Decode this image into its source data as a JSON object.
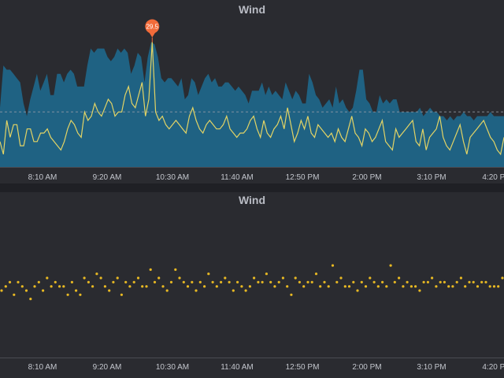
{
  "colors": {
    "background": "#2a2b30",
    "area_fill": "#1f6283",
    "line": "#e3d465",
    "dots": "#e8b923",
    "reference_line": "#9aa0aa",
    "marker": "#f26b3a",
    "text": "#c3c6cd"
  },
  "chart_data": [
    {
      "type": "area",
      "title": "Wind",
      "x_ticks": [
        "8:10 AM",
        "9:20 AM",
        "10:30 AM",
        "11:40 AM",
        "12:50 PM",
        "2:00 PM",
        "3:10 PM",
        "4:20 PM"
      ],
      "annotation": {
        "label": "29.5",
        "value": 29.5,
        "note": "max marker"
      },
      "ylim": [
        0,
        35
      ],
      "reference_line_value": 13,
      "grid": false,
      "legend": "none",
      "series": [
        {
          "kind": "area",
          "values": [
            14,
            24,
            23,
            23,
            22,
            21,
            20,
            15,
            12,
            16,
            19,
            22,
            18,
            20,
            22,
            17,
            17,
            22,
            22,
            20,
            22,
            23,
            22,
            19,
            19,
            19,
            24,
            28,
            27,
            28,
            28,
            28,
            26,
            25,
            26,
            28,
            27,
            28,
            27,
            22,
            24,
            27,
            26,
            20,
            26,
            29.5,
            29,
            26,
            21,
            20,
            21,
            21,
            20,
            19,
            21,
            16,
            17,
            21,
            20,
            17,
            19,
            21,
            22,
            20,
            21,
            19,
            19,
            20,
            20,
            19,
            18,
            19,
            18,
            17,
            15,
            18,
            18,
            18,
            20,
            17,
            19,
            17,
            18,
            17,
            16,
            20,
            18,
            16,
            18,
            17,
            15,
            15,
            22,
            20,
            17,
            16,
            14,
            15,
            16,
            14,
            19,
            15,
            16,
            14,
            13,
            14,
            18,
            23,
            23,
            16,
            15,
            13,
            13,
            17,
            15,
            16,
            15,
            16,
            16,
            13,
            13,
            13,
            13,
            13,
            13,
            14,
            12,
            13,
            14,
            13,
            13,
            12,
            12,
            11,
            12,
            11,
            12,
            12,
            13,
            12,
            12,
            11,
            12,
            12,
            12,
            12,
            13,
            12,
            12,
            12,
            12
          ]
        },
        {
          "kind": "line",
          "values": [
            6,
            3,
            11,
            7,
            10,
            10,
            5,
            5,
            9,
            9,
            6,
            6,
            8,
            8,
            9,
            7,
            6,
            5,
            4,
            6,
            9,
            11,
            10,
            8,
            7,
            13,
            11,
            12,
            15,
            13,
            12,
            14,
            16,
            15,
            12,
            13,
            13,
            17,
            19,
            15,
            14,
            17,
            20,
            12,
            16,
            29.5,
            13,
            11,
            12,
            10,
            9,
            10,
            11,
            10,
            9,
            8,
            12,
            14,
            11,
            9,
            8,
            10,
            11,
            10,
            9,
            9,
            10,
            12,
            9,
            8,
            7,
            8,
            8,
            9,
            11,
            12,
            9,
            7,
            11,
            8,
            7,
            9,
            10,
            12,
            9,
            14,
            10,
            6,
            8,
            11,
            9,
            12,
            8,
            7,
            10,
            9,
            8,
            7,
            8,
            6,
            9,
            7,
            6,
            9,
            12,
            8,
            7,
            5,
            9,
            8,
            6,
            7,
            9,
            11,
            6,
            5,
            4,
            9,
            7,
            8,
            9,
            10,
            11,
            6,
            5,
            9,
            4,
            7,
            8,
            9,
            12,
            7,
            5,
            4,
            6,
            8,
            10,
            6,
            3,
            7,
            8,
            9,
            10,
            11,
            9,
            7,
            6,
            4,
            3,
            7
          ]
        }
      ]
    },
    {
      "type": "scatter",
      "title": "Wind",
      "x_ticks": [
        "8:10 AM",
        "9:20 AM",
        "10:30 AM",
        "11:40 AM",
        "12:50 PM",
        "2:00 PM",
        "3:10 PM",
        "4:20 PM"
      ],
      "ylim": [
        0,
        35
      ],
      "grid": false,
      "legend": "none",
      "series": [
        {
          "kind": "dots",
          "values": [
            16,
            17,
            18,
            15,
            18,
            17,
            16,
            14,
            17,
            18,
            16,
            19,
            17,
            18,
            17,
            17,
            15,
            18,
            16,
            15,
            19,
            18,
            17,
            20,
            19,
            17,
            16,
            18,
            19,
            15,
            18,
            17,
            18,
            19,
            17,
            17,
            21,
            18,
            19,
            17,
            16,
            18,
            21,
            19,
            18,
            17,
            18,
            16,
            18,
            17,
            20,
            18,
            17,
            18,
            19,
            18,
            16,
            18,
            17,
            16,
            17,
            19,
            18,
            18,
            20,
            18,
            17,
            18,
            19,
            17,
            15,
            19,
            18,
            17,
            18,
            18,
            20,
            17,
            18,
            17,
            22,
            18,
            19,
            17,
            17,
            18,
            16,
            18,
            17,
            19,
            18,
            17,
            18,
            17,
            22,
            18,
            19,
            17,
            18,
            17,
            17,
            16,
            18,
            18,
            19,
            17,
            18,
            18,
            17,
            17,
            18,
            19,
            17,
            18,
            18,
            17,
            18,
            18,
            17,
            17,
            17,
            19
          ]
        }
      ]
    }
  ]
}
